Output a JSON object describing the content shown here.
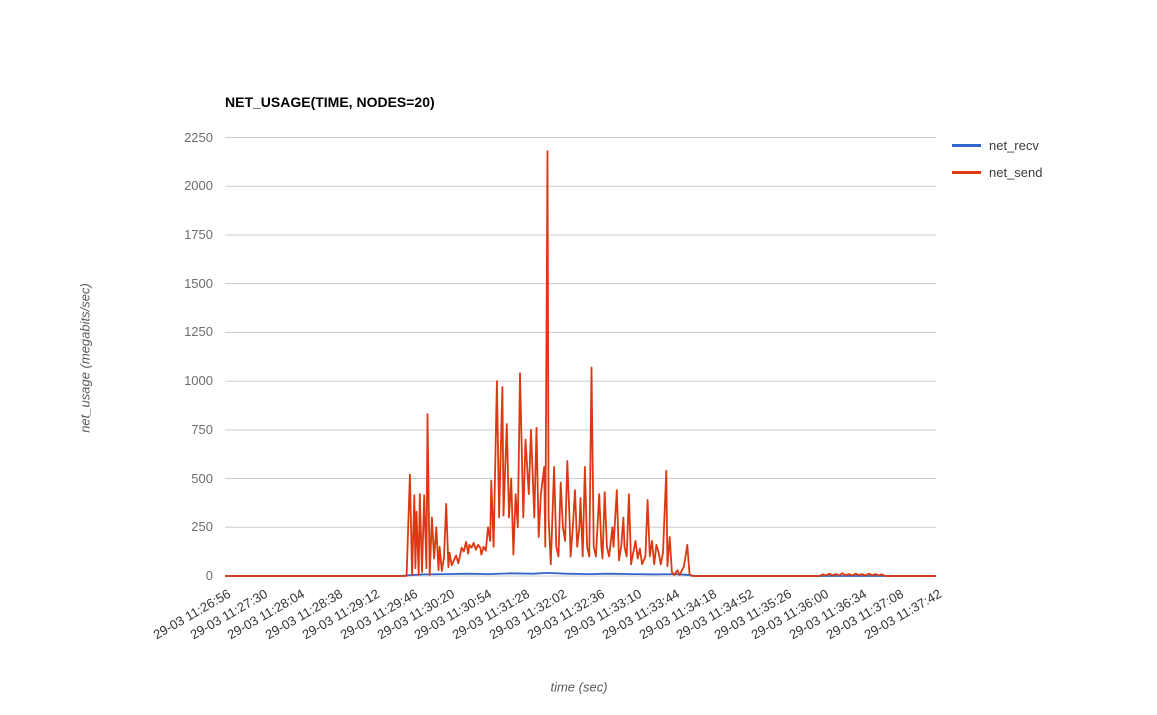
{
  "chart_data": {
    "type": "line",
    "title": "NET_USAGE(TIME, NODES=20)",
    "xlabel": "time (sec)",
    "ylabel": "net_usage (megabits/sec)",
    "legend_position": "right",
    "grid": true,
    "background": "#ffffff",
    "gridline_color": "#cccccc",
    "ylim": [
      0,
      2250
    ],
    "xlim": [
      0,
      646
    ],
    "y_ticks": [
      0,
      250,
      500,
      750,
      1000,
      1250,
      1500,
      1750,
      2000,
      2250
    ],
    "x_tick_interval_sec": 34,
    "x_tick_labels": [
      "29-03 11:26:56",
      "29-03 11:27:30",
      "29-03 11:28:04",
      "29-03 11:28:38",
      "29-03 11:29:12",
      "29-03 11:29:46",
      "29-03 11:30:20",
      "29-03 11:30:54",
      "29-03 11:31:28",
      "29-03 11:32:02",
      "29-03 11:32:36",
      "29-03 11:33:10",
      "29-03 11:33:44",
      "29-03 11:34:18",
      "29-03 11:34:52",
      "29-03 11:35:26",
      "29-03 11:36:00",
      "29-03 11:36:34",
      "29-03 11:37:08",
      "29-03 11:37:42"
    ],
    "series": [
      {
        "name": "net_recv",
        "color": "#3366CC",
        "points": [
          [
            0,
            0
          ],
          [
            160,
            0
          ],
          [
            168,
            4
          ],
          [
            180,
            8
          ],
          [
            200,
            10
          ],
          [
            220,
            12
          ],
          [
            240,
            10
          ],
          [
            260,
            14
          ],
          [
            280,
            12
          ],
          [
            293,
            16
          ],
          [
            310,
            12
          ],
          [
            330,
            10
          ],
          [
            350,
            12
          ],
          [
            370,
            10
          ],
          [
            390,
            8
          ],
          [
            410,
            10
          ],
          [
            420,
            6
          ],
          [
            428,
            0
          ],
          [
            646,
            0
          ]
        ]
      },
      {
        "name": "net_send",
        "color": "#DC3912",
        "points": [
          [
            0,
            0
          ],
          [
            165,
            0
          ],
          [
            168,
            520
          ],
          [
            170,
            5
          ],
          [
            172,
            415
          ],
          [
            173,
            40
          ],
          [
            174,
            330
          ],
          [
            176,
            5
          ],
          [
            177,
            420
          ],
          [
            179,
            20
          ],
          [
            181,
            415
          ],
          [
            183,
            40
          ],
          [
            184,
            830
          ],
          [
            186,
            5
          ],
          [
            188,
            300
          ],
          [
            190,
            90
          ],
          [
            192,
            250
          ],
          [
            194,
            30
          ],
          [
            195,
            150
          ],
          [
            197,
            25
          ],
          [
            199,
            95
          ],
          [
            201,
            370
          ],
          [
            203,
            45
          ],
          [
            204,
            120
          ],
          [
            206,
            55
          ],
          [
            208,
            80
          ],
          [
            210,
            105
          ],
          [
            212,
            65
          ],
          [
            213,
            90
          ],
          [
            215,
            145
          ],
          [
            217,
            125
          ],
          [
            219,
            175
          ],
          [
            221,
            115
          ],
          [
            222,
            160
          ],
          [
            224,
            145
          ],
          [
            226,
            170
          ],
          [
            228,
            135
          ],
          [
            230,
            160
          ],
          [
            232,
            145
          ],
          [
            233,
            110
          ],
          [
            235,
            150
          ],
          [
            237,
            130
          ],
          [
            239,
            250
          ],
          [
            241,
            180
          ],
          [
            242,
            490
          ],
          [
            244,
            150
          ],
          [
            247,
            1000
          ],
          [
            249,
            300
          ],
          [
            252,
            970
          ],
          [
            253,
            310
          ],
          [
            256,
            780
          ],
          [
            258,
            300
          ],
          [
            260,
            500
          ],
          [
            262,
            110
          ],
          [
            264,
            420
          ],
          [
            266,
            250
          ],
          [
            268,
            1040
          ],
          [
            271,
            300
          ],
          [
            273,
            700
          ],
          [
            276,
            420
          ],
          [
            278,
            750
          ],
          [
            281,
            300
          ],
          [
            283,
            760
          ],
          [
            285,
            200
          ],
          [
            287,
            420
          ],
          [
            290,
            560
          ],
          [
            291,
            150
          ],
          [
            293,
            2180
          ],
          [
            294,
            300
          ],
          [
            296,
            60
          ],
          [
            299,
            560
          ],
          [
            301,
            150
          ],
          [
            303,
            100
          ],
          [
            305,
            480
          ],
          [
            307,
            250
          ],
          [
            309,
            180
          ],
          [
            311,
            590
          ],
          [
            313,
            300
          ],
          [
            314,
            100
          ],
          [
            316,
            250
          ],
          [
            318,
            440
          ],
          [
            320,
            150
          ],
          [
            322,
            250
          ],
          [
            323,
            400
          ],
          [
            325,
            100
          ],
          [
            327,
            560
          ],
          [
            329,
            150
          ],
          [
            331,
            100
          ],
          [
            333,
            1070
          ],
          [
            335,
            150
          ],
          [
            337,
            100
          ],
          [
            340,
            420
          ],
          [
            342,
            150
          ],
          [
            343,
            90
          ],
          [
            345,
            430
          ],
          [
            347,
            150
          ],
          [
            349,
            100
          ],
          [
            352,
            250
          ],
          [
            353,
            150
          ],
          [
            356,
            440
          ],
          [
            358,
            80
          ],
          [
            360,
            150
          ],
          [
            362,
            300
          ],
          [
            363,
            150
          ],
          [
            365,
            100
          ],
          [
            367,
            420
          ],
          [
            369,
            60
          ],
          [
            371,
            120
          ],
          [
            373,
            180
          ],
          [
            375,
            90
          ],
          [
            377,
            140
          ],
          [
            379,
            60
          ],
          [
            382,
            100
          ],
          [
            384,
            390
          ],
          [
            386,
            100
          ],
          [
            388,
            180
          ],
          [
            390,
            60
          ],
          [
            392,
            160
          ],
          [
            394,
            120
          ],
          [
            396,
            60
          ],
          [
            398,
            120
          ],
          [
            401,
            540
          ],
          [
            402,
            50
          ],
          [
            404,
            200
          ],
          [
            406,
            20
          ],
          [
            408,
            5
          ],
          [
            411,
            30
          ],
          [
            413,
            5
          ],
          [
            417,
            50
          ],
          [
            420,
            160
          ],
          [
            422,
            10
          ],
          [
            424,
            0
          ],
          [
            540,
            0
          ],
          [
            543,
            8
          ],
          [
            546,
            3
          ],
          [
            549,
            12
          ],
          [
            552,
            4
          ],
          [
            555,
            10
          ],
          [
            558,
            3
          ],
          [
            561,
            14
          ],
          [
            564,
            4
          ],
          [
            567,
            10
          ],
          [
            570,
            3
          ],
          [
            573,
            12
          ],
          [
            576,
            4
          ],
          [
            579,
            10
          ],
          [
            582,
            3
          ],
          [
            585,
            12
          ],
          [
            588,
            4
          ],
          [
            591,
            10
          ],
          [
            594,
            3
          ],
          [
            597,
            8
          ],
          [
            600,
            0
          ],
          [
            646,
            0
          ]
        ]
      }
    ]
  }
}
